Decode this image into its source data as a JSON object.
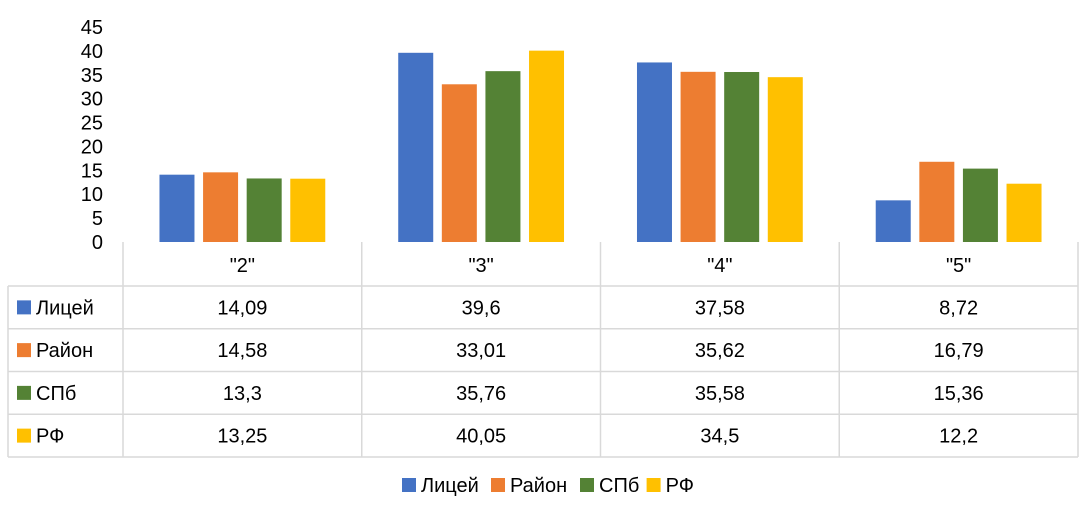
{
  "chart_data": {
    "type": "bar",
    "categories": [
      "\"2\"",
      "\"3\"",
      "\"4\"",
      "\"5\""
    ],
    "ylim": [
      0,
      45
    ],
    "yticks": [
      "0",
      "5",
      "10",
      "15",
      "20",
      "25",
      "30",
      "35",
      "40",
      "45"
    ],
    "grid": false,
    "legend": "bottom",
    "series": [
      {
        "name": "Лицей",
        "color": "#4472C4",
        "values": [
          14.09,
          39.6,
          37.58,
          8.72
        ],
        "labels": [
          "14,09",
          "39,6",
          "37,58",
          "8,72"
        ]
      },
      {
        "name": "Район",
        "color": "#ED7D31",
        "values": [
          14.58,
          33.01,
          35.62,
          16.79
        ],
        "labels": [
          "14,58",
          "33,01",
          "35,62",
          "16,79"
        ]
      },
      {
        "name": "СПб",
        "color": "#548235",
        "values": [
          13.3,
          35.76,
          35.58,
          15.36
        ],
        "labels": [
          "13,3",
          "35,76",
          "35,58",
          "15,36"
        ]
      },
      {
        "name": "РФ",
        "color": "#FFC000",
        "values": [
          13.25,
          40.05,
          34.5,
          12.2
        ],
        "labels": [
          "13,25",
          "40,05",
          "34,5",
          "12,2"
        ]
      }
    ]
  }
}
